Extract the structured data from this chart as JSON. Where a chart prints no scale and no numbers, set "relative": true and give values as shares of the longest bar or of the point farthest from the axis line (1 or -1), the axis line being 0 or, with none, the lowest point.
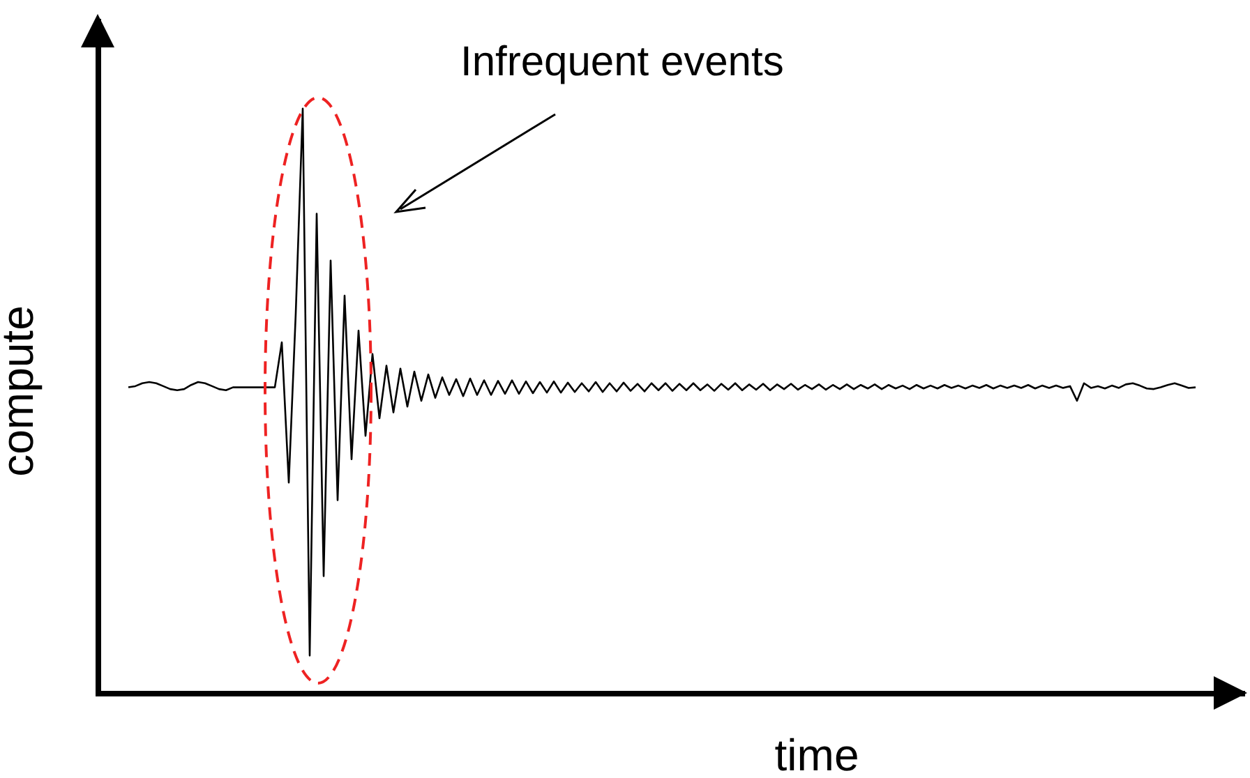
{
  "chart_data": {
    "type": "line",
    "relative": true,
    "xlabel": "time",
    "ylabel": "compute",
    "annotations": [
      "Infrequent events"
    ],
    "categories": [
      null,
      null,
      null,
      null,
      null,
      null,
      null,
      null,
      null,
      null,
      null,
      null,
      null,
      null,
      null,
      null,
      null,
      null,
      null,
      null,
      null,
      null,
      null,
      null,
      null,
      null,
      null,
      null,
      null,
      null,
      null,
      null,
      null,
      null,
      null,
      null,
      null,
      null,
      null,
      null,
      null,
      null,
      null,
      null,
      null,
      null,
      null,
      null,
      null,
      null,
      null,
      null,
      null,
      null,
      null,
      null,
      null,
      null,
      null,
      null,
      null,
      null,
      null,
      null,
      null,
      null,
      null,
      null,
      null,
      null,
      null,
      null,
      null,
      null,
      null,
      null,
      null,
      null,
      null,
      null,
      null,
      null,
      null,
      null,
      null,
      null,
      null,
      null,
      null,
      null,
      null,
      null,
      null,
      null,
      null,
      null,
      null,
      null,
      null,
      null,
      null,
      null,
      null,
      null,
      null,
      null,
      null,
      null,
      null,
      null,
      null,
      null,
      null,
      null,
      null,
      null,
      null,
      null,
      null,
      null,
      null,
      null,
      null,
      null,
      null,
      null,
      null,
      null,
      null,
      null,
      null,
      null,
      null,
      null,
      null,
      null,
      null,
      null,
      null,
      null,
      null,
      null,
      null,
      null,
      null,
      null,
      null,
      null,
      null,
      null,
      null,
      null,
      null,
      null
    ],
    "series": [
      {
        "color": "#000000",
        "values": [
          0.523,
          0.525,
          0.53,
          0.532,
          0.53,
          0.525,
          0.52,
          0.518,
          0.52,
          0.527,
          0.532,
          0.53,
          0.525,
          0.52,
          0.518,
          0.523,
          0.523,
          0.523,
          0.523,
          0.523,
          0.523,
          0.523,
          0.6,
          0.36,
          0.65,
          1.0,
          0.064,
          0.82,
          0.2,
          0.74,
          0.33,
          0.68,
          0.4,
          0.62,
          0.44,
          0.58,
          0.47,
          0.56,
          0.48,
          0.555,
          0.49,
          0.55,
          0.5,
          0.545,
          0.505,
          0.54,
          0.51,
          0.537,
          0.508,
          0.538,
          0.51,
          0.535,
          0.51,
          0.534,
          0.512,
          0.535,
          0.512,
          0.533,
          0.513,
          0.532,
          0.514,
          0.533,
          0.514,
          0.531,
          0.515,
          0.53,
          0.516,
          0.532,
          0.515,
          0.53,
          0.516,
          0.531,
          0.517,
          0.529,
          0.516,
          0.53,
          0.518,
          0.53,
          0.517,
          0.529,
          0.518,
          0.53,
          0.518,
          0.528,
          0.517,
          0.529,
          0.519,
          0.53,
          0.518,
          0.528,
          0.519,
          0.529,
          0.518,
          0.528,
          0.52,
          0.529,
          0.519,
          0.527,
          0.52,
          0.528,
          0.519,
          0.527,
          0.52,
          0.528,
          0.52,
          0.527,
          0.521,
          0.528,
          0.52,
          0.527,
          0.521,
          0.526,
          0.52,
          0.527,
          0.521,
          0.526,
          0.521,
          0.527,
          0.522,
          0.526,
          0.521,
          0.526,
          0.522,
          0.527,
          0.521,
          0.526,
          0.522,
          0.526,
          0.522,
          0.527,
          0.521,
          0.526,
          0.522,
          0.526,
          0.522,
          0.525,
          0.5,
          0.53,
          0.522,
          0.525,
          0.521,
          0.526,
          0.522,
          0.528,
          0.53,
          0.526,
          0.521,
          0.52,
          0.523,
          0.527,
          0.53,
          0.526,
          0.522,
          0.523
        ]
      }
    ]
  }
}
